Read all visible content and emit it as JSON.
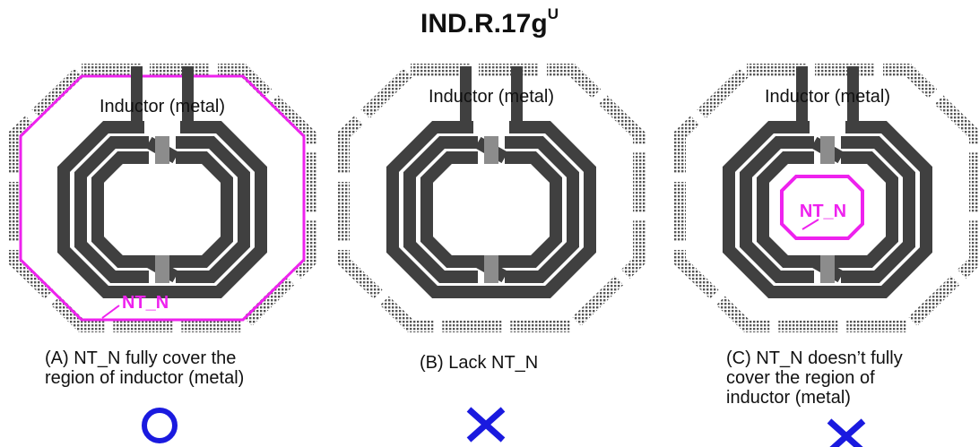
{
  "title": {
    "main": "IND.R.17g",
    "superscript": "U"
  },
  "panels": [
    {
      "id": "A",
      "inductor_label": "Inductor (metal)",
      "nt_label": "NT_N",
      "caption": [
        "(A) NT_N fully cover the",
        "region of inductor (metal)"
      ],
      "verdict": "circle-icon"
    },
    {
      "id": "B",
      "inductor_label": "Inductor (metal)",
      "caption": [
        "(B) Lack NT_N"
      ],
      "verdict": "cross-icon"
    },
    {
      "id": "C",
      "inductor_label": "Inductor (metal)",
      "nt_label": "NT_N",
      "caption": [
        "(C) NT_N doesn’t fully",
        "cover the region of",
        "inductor (metal)"
      ],
      "verdict": "cross-icon"
    }
  ],
  "colors": {
    "metal": "#404040",
    "nt_layer": "#ee22ee",
    "verdict": "#1a1adf",
    "dots": "#555555"
  }
}
